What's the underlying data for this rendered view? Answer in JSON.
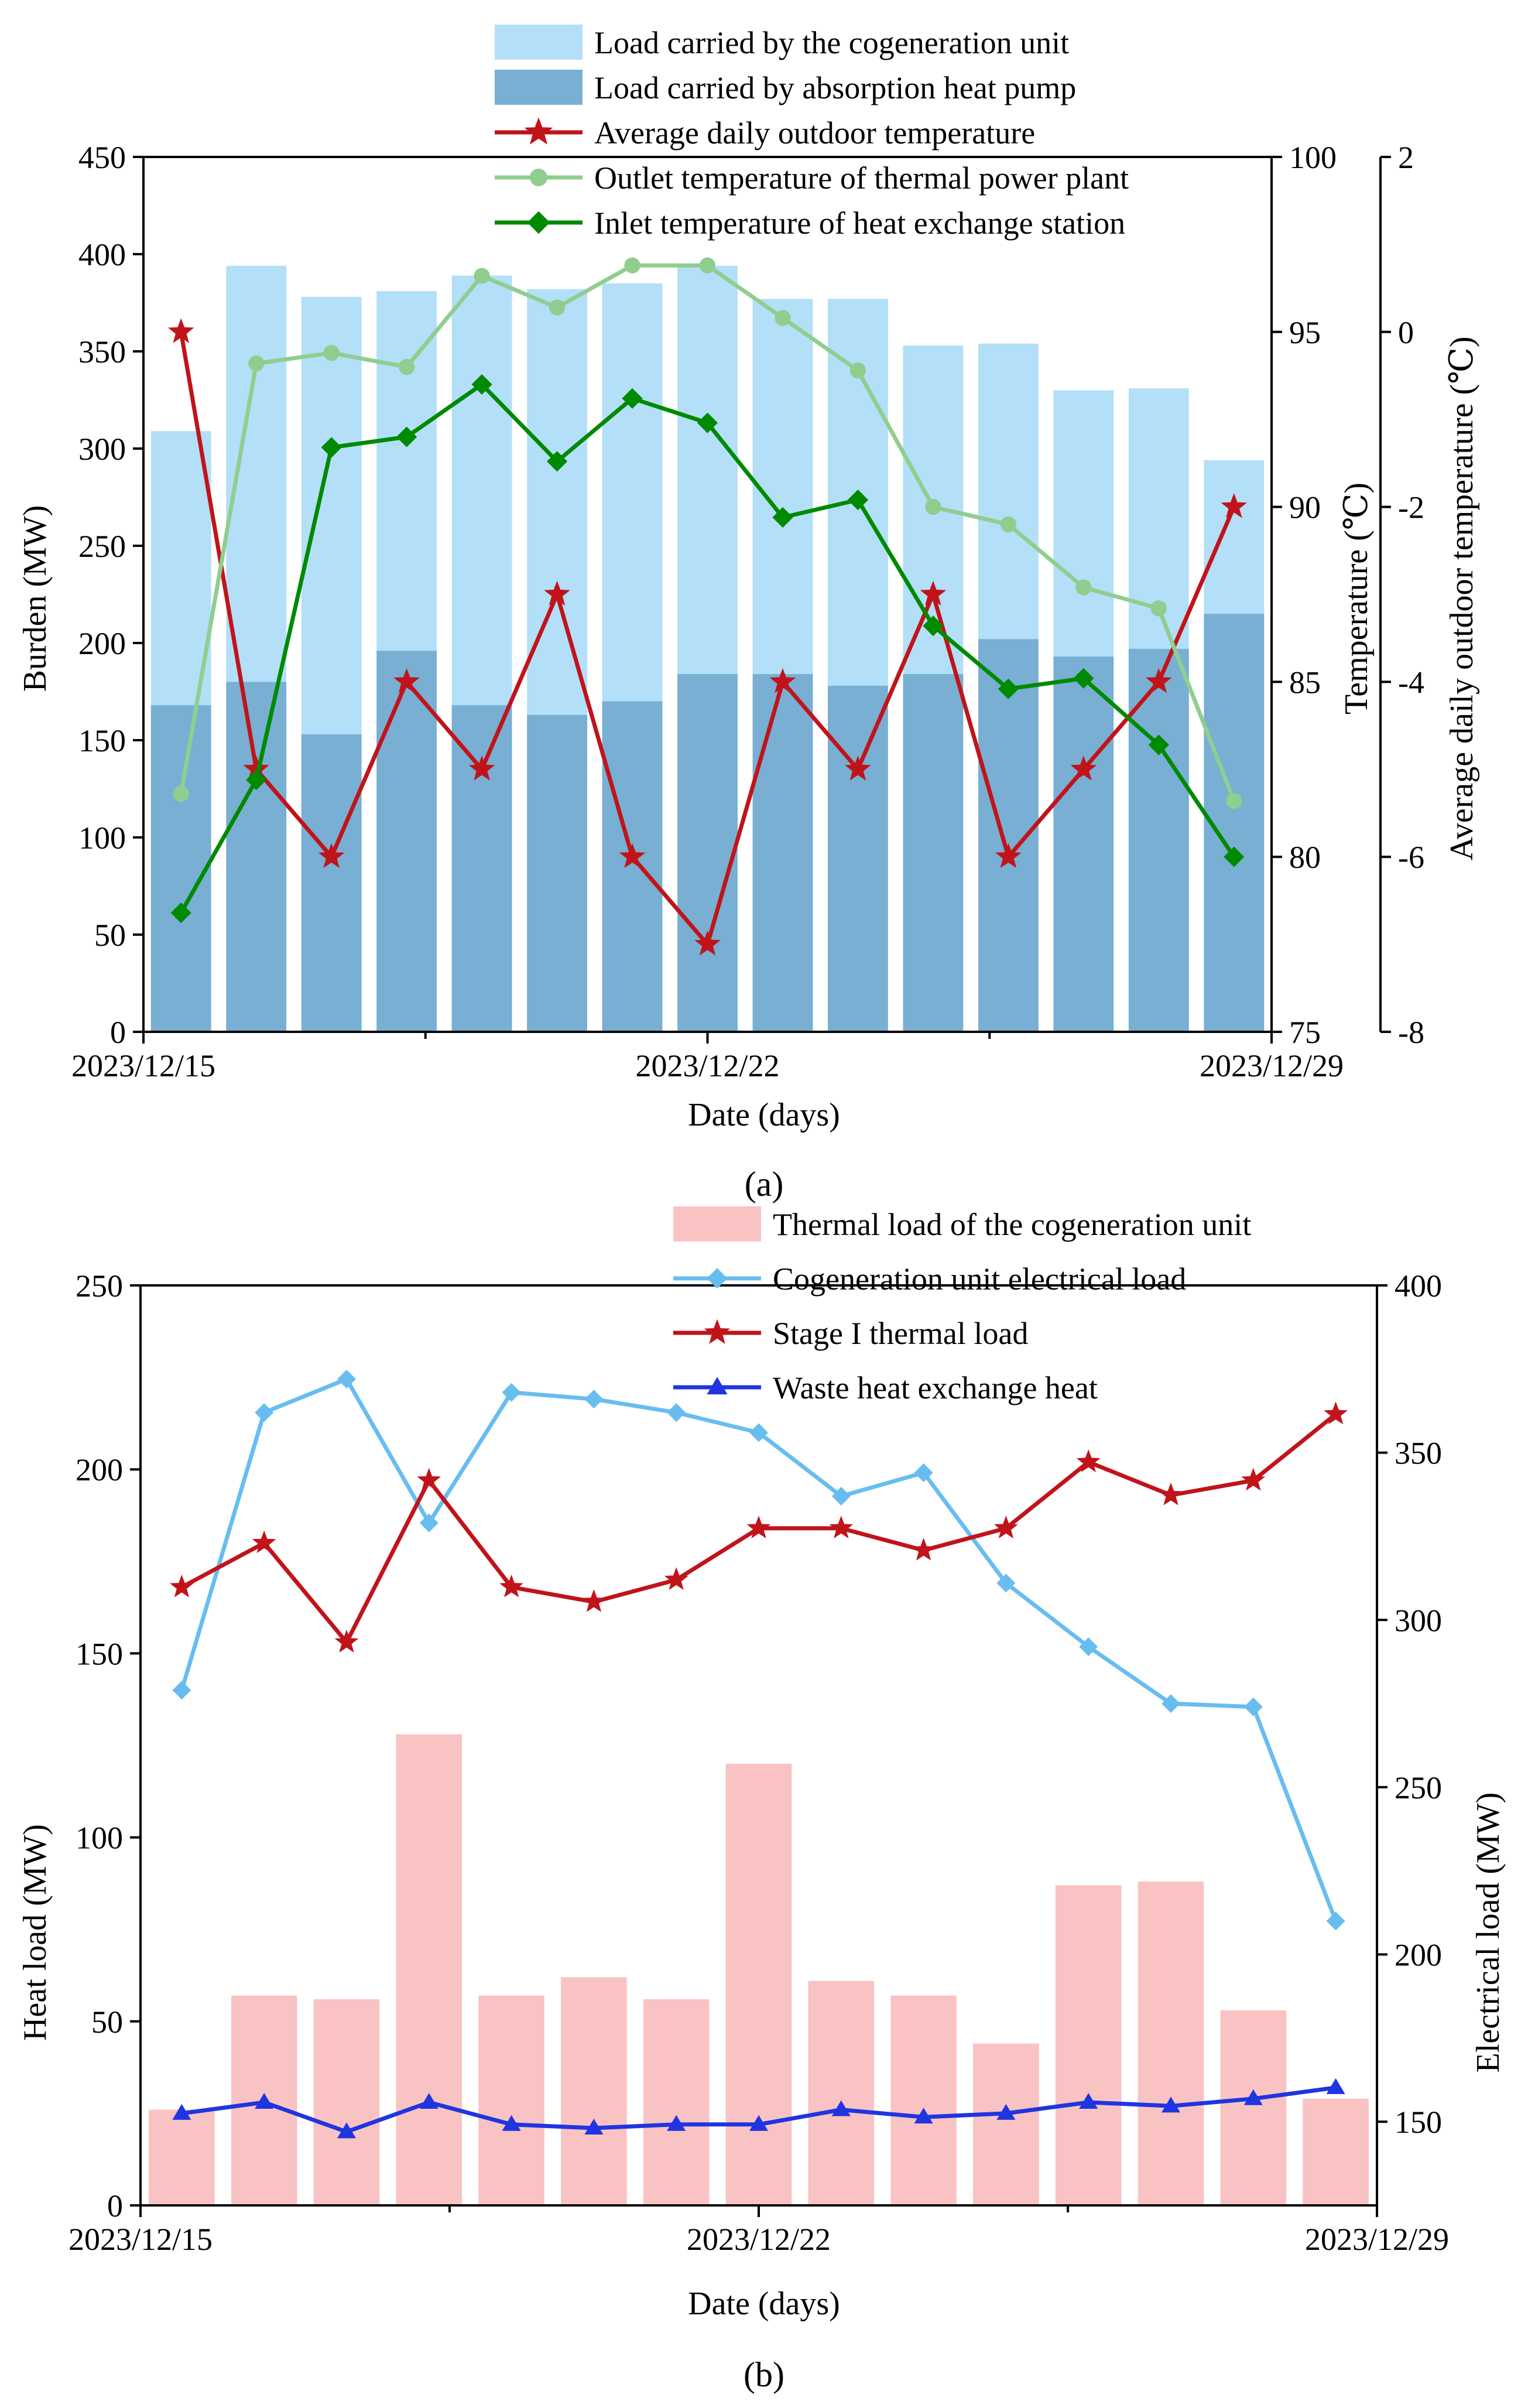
{
  "chart_data": [
    {
      "type": "bar",
      "panel_label": "(a)",
      "xlabel": "Date (days)",
      "x_ticks": [
        "2023/12/15",
        "2023/12/22",
        "2023/12/29"
      ],
      "days": 15,
      "ylabel": "Burden (MW)",
      "ylim": [
        0,
        450
      ],
      "y_ticks": [
        "0",
        "50",
        "100",
        "150",
        "200",
        "250",
        "300",
        "350",
        "400",
        "450"
      ],
      "y2label": "Temperature (℃)",
      "y2lim": [
        75,
        100
      ],
      "y2_ticks": [
        "75",
        "80",
        "85",
        "90",
        "95",
        "100"
      ],
      "y3label": "Average daily outdoor temperature (℃)",
      "y3lim": [
        -8,
        2
      ],
      "y3_ticks": [
        "-8",
        "-6",
        "-4",
        "-2",
        "0",
        "2"
      ],
      "grid": false,
      "legend_position": "top",
      "bar_series": [
        {
          "name": "Load carried by the cogeneration unit",
          "color": "#b3dff8",
          "axis": "left",
          "values": [
            309,
            394,
            378,
            381,
            389,
            382,
            385,
            394,
            377,
            377,
            353,
            354,
            330,
            331,
            294
          ]
        },
        {
          "name": "Load carried by absorption heat pump",
          "color": "#78afd3",
          "axis": "left",
          "values": [
            168,
            180,
            153,
            196,
            168,
            163,
            170,
            184,
            184,
            178,
            184,
            202,
            193,
            197,
            215
          ]
        }
      ],
      "line_series": [
        {
          "name": "Average daily outdoor temperature",
          "color": "#c0141a",
          "marker": "star",
          "axis": "right-outer",
          "values": [
            0,
            -5.0,
            -6.0,
            -4.0,
            -5.0,
            -3.0,
            -6.0,
            -7.0,
            -4.0,
            -5.0,
            -3.0,
            -6.0,
            -5.0,
            -4.0,
            -2.0
          ]
        },
        {
          "name": "Outlet temperature of thermal power plant",
          "color": "#8fce8f",
          "marker": "circle",
          "axis": "right",
          "values": [
            81.8,
            94.1,
            94.4,
            94.0,
            96.6,
            95.7,
            96.9,
            96.9,
            95.4,
            93.9,
            90.0,
            89.5,
            87.7,
            87.1,
            81.6
          ]
        },
        {
          "name": "Inlet temperature of heat exchange station",
          "color": "#008a00",
          "marker": "diamond",
          "axis": "right",
          "values": [
            78.4,
            82.2,
            91.7,
            92.0,
            93.5,
            91.3,
            93.1,
            92.4,
            89.7,
            90.2,
            86.6,
            84.8,
            85.1,
            83.2,
            80.0
          ]
        }
      ]
    },
    {
      "type": "bar",
      "panel_label": "(b)",
      "xlabel": "Date (days)",
      "x_ticks": [
        "2023/12/15",
        "2023/12/22",
        "2023/12/29"
      ],
      "days": 15,
      "ylabel": "Heat load (MW)",
      "ylim": [
        0,
        250
      ],
      "y_ticks": [
        "0",
        "50",
        "100",
        "150",
        "200",
        "250"
      ],
      "y2label": "Electrical load (MW)",
      "y2lim": [
        125,
        400
      ],
      "y2_ticks": [
        "150",
        "200",
        "250",
        "300",
        "350",
        "400"
      ],
      "grid": false,
      "legend_position": "top",
      "bar_series": [
        {
          "name": "Thermal load of the cogeneration unit",
          "color": "#f9c3c3",
          "axis": "left",
          "values": [
            26,
            57,
            56,
            128,
            57,
            62,
            56,
            120,
            61,
            57,
            44,
            87,
            88,
            53,
            29
          ]
        }
      ],
      "line_series": [
        {
          "name": "Cogeneration unit electrical load",
          "color": "#68bdf0",
          "marker": "diamond",
          "axis": "right",
          "values": [
            279,
            362,
            372,
            329,
            368,
            366,
            362,
            356,
            337,
            344,
            311,
            292,
            275,
            274,
            210
          ]
        },
        {
          "name": "Stage I thermal load",
          "color": "#c0141a",
          "marker": "star",
          "axis": "left",
          "values": [
            168,
            180,
            153,
            197,
            168,
            164,
            170,
            184,
            184,
            178,
            184,
            202,
            193,
            197,
            215
          ]
        },
        {
          "name": "Waste heat exchange heat",
          "color": "#1f35e0",
          "marker": "triangle",
          "axis": "left",
          "values": [
            25,
            28,
            20,
            28,
            22,
            21,
            22,
            22,
            26,
            24,
            25,
            28,
            27,
            29,
            32
          ]
        }
      ]
    }
  ]
}
